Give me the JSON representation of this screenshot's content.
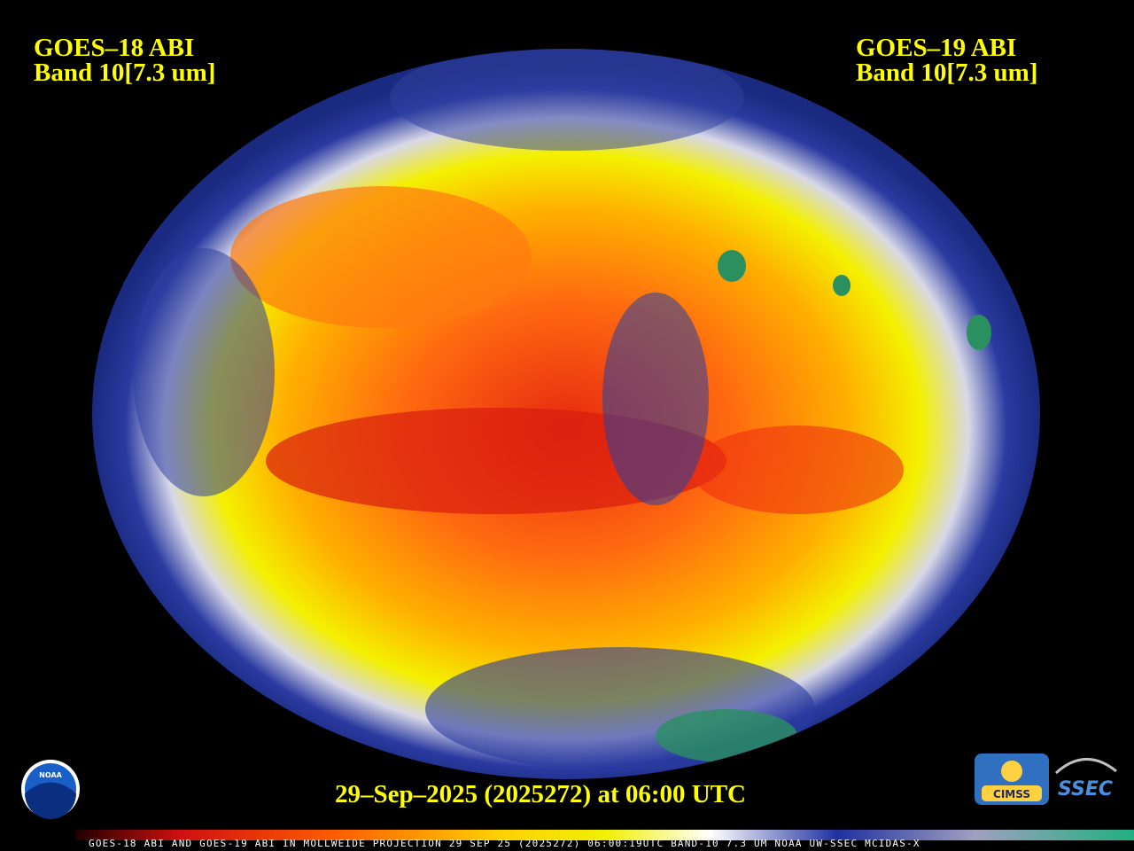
{
  "header": {
    "left_title": "GOES–18 ABI",
    "left_band": "Band 10[7.3 um]",
    "right_title": "GOES–19 ABI",
    "right_band": "Band 10[7.3 um]"
  },
  "timestamp": "29–Sep–2025 (2025272) at 06:00 UTC",
  "color_bar_caption": "GOES-18 ABI AND GOES-19 ABI IN MOLLWEIDE PROJECTION 29 SEP 25 (2025272) 06:00:19UTC BAND-10 7.3 UM NOAA UW-SSEC MCIDAS-X",
  "logos": {
    "noaa": "NOAA",
    "cimss": "CIMSS",
    "ssec": "SSEC"
  }
}
